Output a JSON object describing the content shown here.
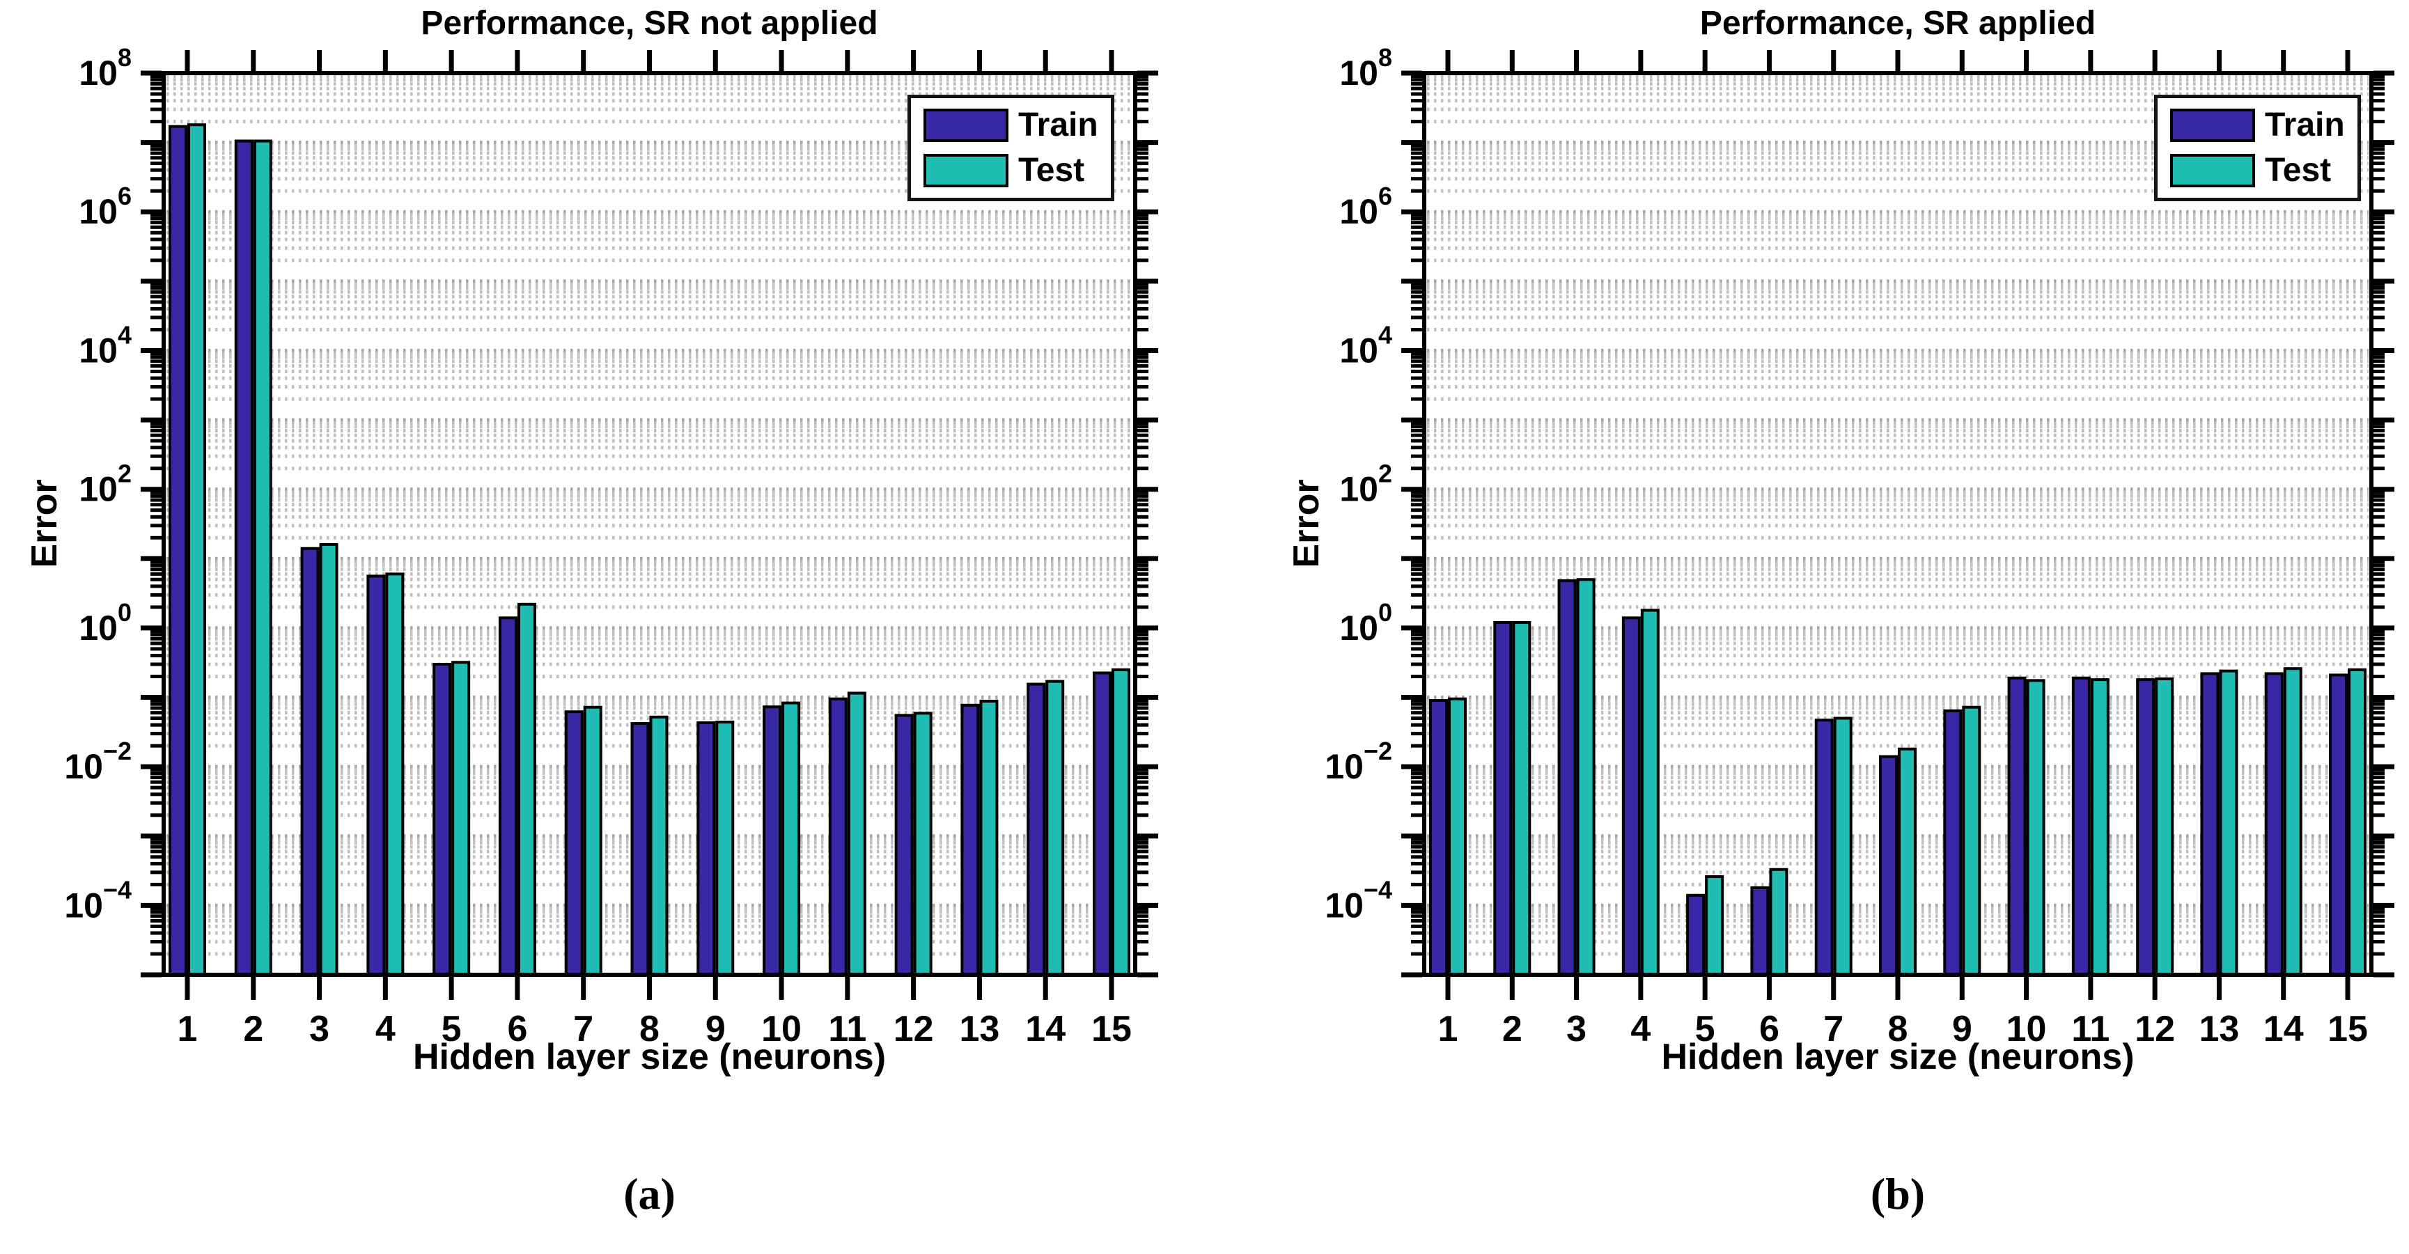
{
  "colors": {
    "train": "#3928a6",
    "test": "#1fbdb3",
    "grid_minor": "#bfbfbf",
    "grid_major": "#a6a6a6",
    "axis": "#000000",
    "background": "#ffffff"
  },
  "chart_data": [
    {
      "type": "bar",
      "title": "Performance, SR not applied",
      "xlabel": "Hidden layer size (neurons)",
      "ylabel": "Error",
      "caption": "(a)",
      "log_y": true,
      "grid": true,
      "legend_position": "top-right",
      "categories": [
        1,
        2,
        3,
        4,
        5,
        6,
        7,
        8,
        9,
        10,
        11,
        12,
        13,
        14,
        15
      ],
      "ylim": [
        1e-05,
        100000000.0
      ],
      "y_tick_exponents": [
        8,
        6,
        4,
        2,
        0,
        -2,
        -4
      ],
      "series": [
        {
          "name": "Train",
          "color_key": "train",
          "values": [
            17000000.0,
            10500000.0,
            14,
            5.6,
            0.3,
            1.4,
            0.062,
            0.042,
            0.043,
            0.073,
            0.095,
            0.055,
            0.077,
            0.155,
            0.225
          ]
        },
        {
          "name": "Test",
          "color_key": "test",
          "values": [
            18000000.0,
            10500000.0,
            16,
            6.0,
            0.32,
            2.2,
            0.072,
            0.052,
            0.044,
            0.083,
            0.115,
            0.059,
            0.088,
            0.17,
            0.25
          ]
        }
      ]
    },
    {
      "type": "bar",
      "title": "Performance, SR applied",
      "xlabel": "Hidden layer size (neurons)",
      "ylabel": "Error",
      "caption": "(b)",
      "log_y": true,
      "grid": true,
      "legend_position": "top-right",
      "categories": [
        1,
        2,
        3,
        4,
        5,
        6,
        7,
        8,
        9,
        10,
        11,
        12,
        13,
        14,
        15
      ],
      "ylim": [
        1e-05,
        100000000.0
      ],
      "y_tick_exponents": [
        8,
        6,
        4,
        2,
        0,
        -2,
        -4
      ],
      "series": [
        {
          "name": "Train",
          "color_key": "train",
          "values": [
            0.09,
            1.2,
            4.8,
            1.4,
            0.00014,
            0.00018,
            0.047,
            0.014,
            0.064,
            0.19,
            0.19,
            0.18,
            0.22,
            0.22,
            0.21
          ]
        },
        {
          "name": "Test",
          "color_key": "test",
          "values": [
            0.095,
            1.2,
            5.0,
            1.8,
            0.00026,
            0.00033,
            0.05,
            0.018,
            0.072,
            0.175,
            0.18,
            0.185,
            0.24,
            0.26,
            0.25
          ]
        }
      ]
    }
  ]
}
